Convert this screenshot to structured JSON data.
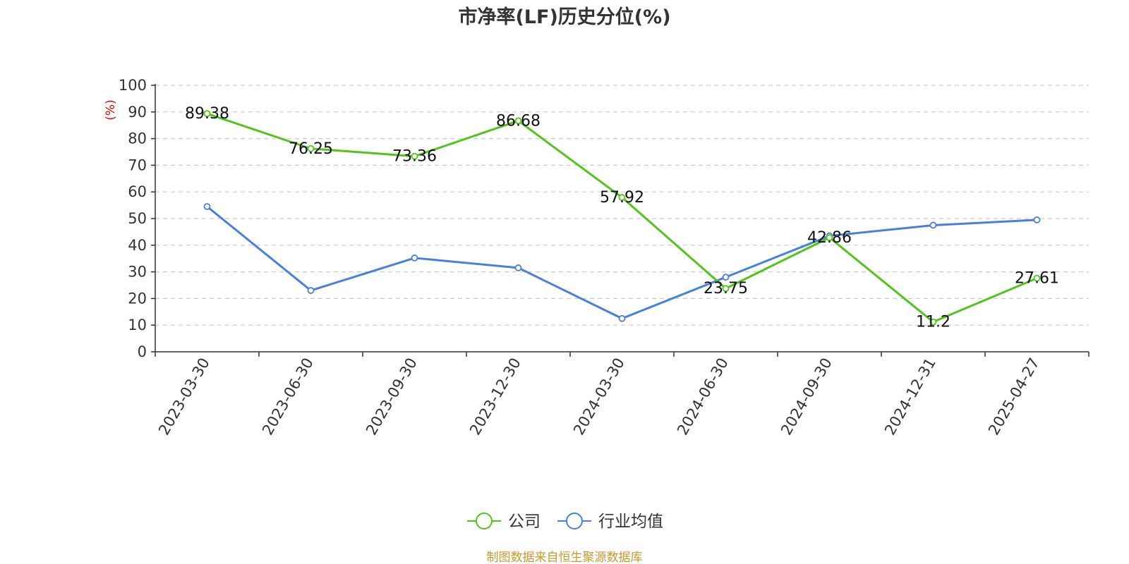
{
  "chart_data": {
    "type": "line",
    "title": "市净率(LF)历史分位(%)",
    "ylabel": "(%)",
    "xlabel": "",
    "ylim": [
      0,
      100
    ],
    "yticks": [
      0,
      10,
      20,
      30,
      40,
      50,
      60,
      70,
      80,
      90,
      100
    ],
    "grid": true,
    "legend_position": "bottom-center",
    "categories": [
      "2023-03-30",
      "2023-06-30",
      "2023-09-30",
      "2023-12-30",
      "2024-03-30",
      "2024-06-30",
      "2024-09-30",
      "2024-12-31",
      "2025-04-27"
    ],
    "series": [
      {
        "name": "公司",
        "color": "#52c41a",
        "values": [
          89.38,
          76.25,
          73.36,
          86.68,
          57.92,
          23.75,
          42.86,
          11.2,
          27.61
        ],
        "labels": [
          "89.38",
          "76.25",
          "73.36",
          "86.68",
          "57.92",
          "23.75",
          "42.86",
          "11.2",
          "27.61"
        ]
      },
      {
        "name": "行业均值",
        "color": "#4a7fdb",
        "values": [
          54.5,
          23,
          35.2,
          31.5,
          12.5,
          28,
          43.5,
          47.5,
          49.5
        ]
      }
    ]
  },
  "source": "制图数据来自恒生聚源数据库"
}
